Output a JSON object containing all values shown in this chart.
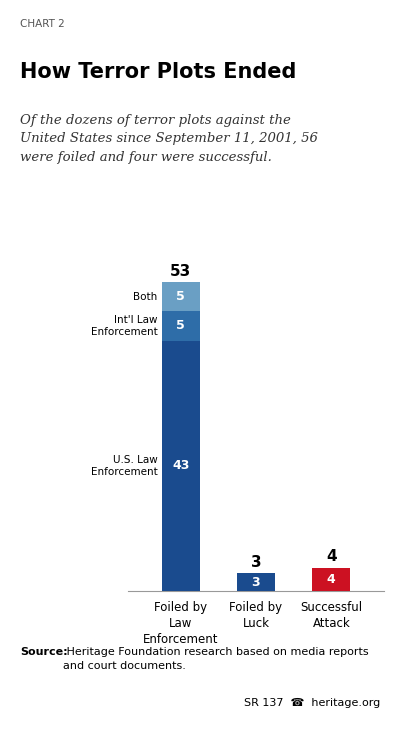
{
  "chart_label": "CHART 2",
  "title": "How Terror Plots Ended",
  "subtitle": "Of the dozens of terror plots against the\nUnited States since September 11, 2001, 56\nwere foiled and four were successful.",
  "bars": [
    {
      "label": "Foiled by\nLaw\nEnforcement",
      "segments": [
        {
          "value": 43,
          "color": "#1a4b8e",
          "label_text": "43",
          "segment_label": "U.S. Law\nEnforcement"
        },
        {
          "value": 5,
          "color": "#2e6da8",
          "label_text": "5",
          "segment_label": "Int'l Law\nEnforcement"
        },
        {
          "value": 5,
          "color": "#6a9fc4",
          "label_text": "5",
          "segment_label": "Both"
        }
      ],
      "total": 53,
      "total_label": "53"
    },
    {
      "label": "Foiled by\nLuck",
      "segments": [
        {
          "value": 3,
          "color": "#1a4b8e",
          "label_text": "3",
          "segment_label": ""
        }
      ],
      "total": 3,
      "total_label": "3"
    },
    {
      "label": "Successful\nAttack",
      "segments": [
        {
          "value": 4,
          "color": "#cc1122",
          "label_text": "4",
          "segment_label": ""
        }
      ],
      "total": 4,
      "total_label": "4"
    }
  ],
  "ylim": [
    0,
    58
  ],
  "source_bold": "Source:",
  "source_rest": " Heritage Foundation research based on media reports\nand court documents.",
  "footer": "SR 137  ☎  heritage.org",
  "bg_color": "#ffffff",
  "bar_width": 0.5
}
